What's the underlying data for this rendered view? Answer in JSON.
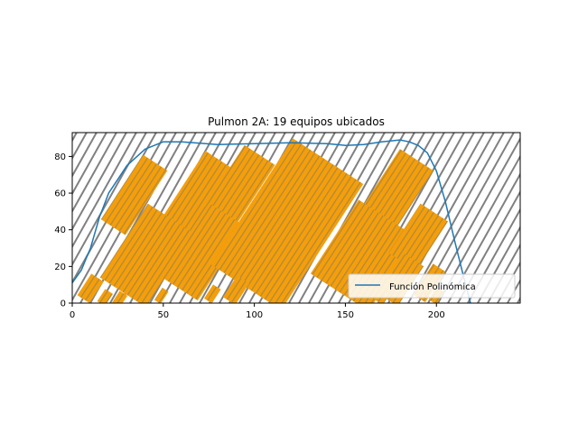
{
  "chart_data": {
    "type": "line",
    "title": "Pulmon 2A: 19 equipos ubicados",
    "xlabel": "",
    "ylabel": "",
    "xlim": [
      0,
      246
    ],
    "ylim": [
      0,
      93
    ],
    "xticks": [
      0,
      50,
      100,
      150,
      200
    ],
    "yticks": [
      0,
      20,
      40,
      60,
      80
    ],
    "grid": false,
    "legend_position": "lower right",
    "background_pattern": "diagonal hatch",
    "colors": {
      "line": "#1f77b4",
      "equipment": "#f59e0b",
      "equipment_stripe": "#b08a3a",
      "hatch": "#808080"
    },
    "series": [
      {
        "name": "Función Polinómica",
        "x": [
          0,
          5,
          10,
          15,
          20,
          30,
          40,
          50,
          60,
          80,
          100,
          120,
          140,
          150,
          160,
          170,
          180,
          185,
          190,
          195,
          200,
          205,
          210,
          215,
          220
        ],
        "y": [
          11,
          18,
          30,
          47,
          60,
          75,
          84,
          88,
          88,
          86.5,
          87,
          87.5,
          87,
          86,
          86.5,
          88,
          89,
          88,
          86,
          82,
          72,
          55,
          34,
          14,
          -5
        ]
      }
    ],
    "equipment": [
      {
        "cx": 34,
        "cy": 59,
        "w": 16,
        "h": 42,
        "angle": 33
      },
      {
        "cx": 70,
        "cy": 60,
        "w": 20,
        "h": 42,
        "angle": 33
      },
      {
        "cx": 92,
        "cy": 64,
        "w": 20,
        "h": 40,
        "angle": 33
      },
      {
        "cx": 41,
        "cy": 26,
        "w": 30,
        "h": 48,
        "angle": 33
      },
      {
        "cx": 72,
        "cy": 28,
        "w": 24,
        "h": 48,
        "angle": 33
      },
      {
        "cx": 118,
        "cy": 43,
        "w": 46,
        "h": 82,
        "angle": 33
      },
      {
        "cx": 176,
        "cy": 58,
        "w": 22,
        "h": 48,
        "angle": 33
      },
      {
        "cx": 160,
        "cy": 26,
        "w": 38,
        "h": 48,
        "angle": 33
      },
      {
        "cx": 190,
        "cy": 36,
        "w": 18,
        "h": 32,
        "angle": 33
      },
      {
        "cx": 10,
        "cy": 8,
        "w": 8,
        "h": 14,
        "angle": 33
      },
      {
        "cx": 18,
        "cy": 3,
        "w": 5,
        "h": 8,
        "angle": 33
      },
      {
        "cx": 26,
        "cy": 2,
        "w": 5,
        "h": 8,
        "angle": 33
      },
      {
        "cx": 49,
        "cy": 4,
        "w": 4,
        "h": 8,
        "angle": 33
      },
      {
        "cx": 77,
        "cy": 5,
        "w": 5,
        "h": 9,
        "angle": 33
      },
      {
        "cx": 90,
        "cy": 7,
        "w": 8,
        "h": 14,
        "angle": 33
      },
      {
        "cx": 180,
        "cy": 13,
        "w": 14,
        "h": 26,
        "angle": 33
      },
      {
        "cx": 196,
        "cy": 11,
        "w": 8,
        "h": 20,
        "angle": 33
      },
      {
        "cx": 171,
        "cy": 7,
        "w": 8,
        "h": 14,
        "angle": 33
      },
      {
        "cx": 200,
        "cy": 4,
        "w": 5,
        "h": 8,
        "angle": 33
      }
    ]
  }
}
